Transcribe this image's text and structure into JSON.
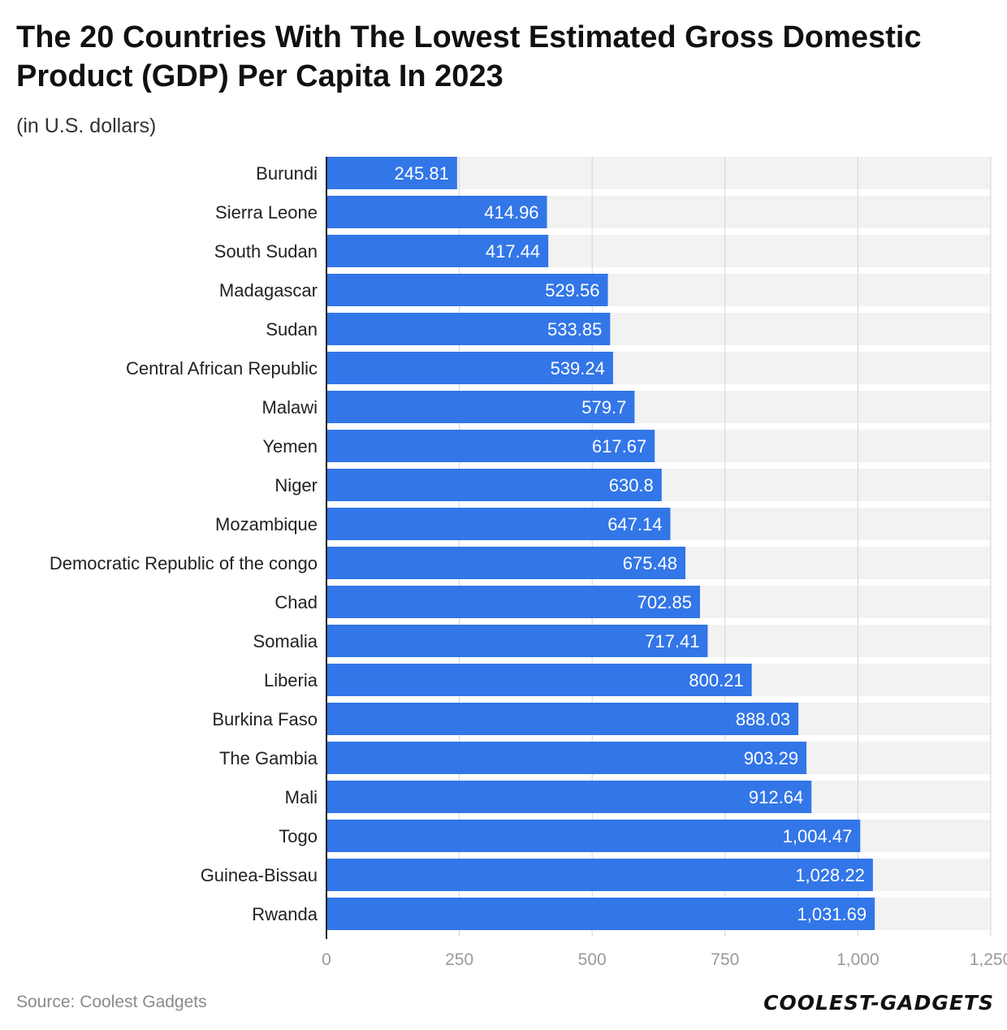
{
  "header": {
    "title": "The 20 Countries With The Lowest Estimated Gross Domestic Product (GDP) Per Capita In 2023",
    "subtitle": "(in U.S. dollars)"
  },
  "footer": {
    "source": "Source: Coolest Gadgets",
    "logo_text": "COOLEST-GADGETS"
  },
  "colors": {
    "bar": "#3276e8",
    "band": "#f2f2f2",
    "grid": "#d4d4d4",
    "axis": "#222222"
  },
  "chart_data": {
    "type": "bar",
    "orientation": "horizontal",
    "title": "The 20 Countries With The Lowest Estimated Gross Domestic Product (GDP) Per Capita In 2023",
    "subtitle": "(in U.S. dollars)",
    "categories": [
      "Burundi",
      "Sierra Leone",
      "South Sudan",
      "Madagascar",
      "Sudan",
      "Central African Republic",
      "Malawi",
      "Yemen",
      "Niger",
      "Mozambique",
      "Democratic Republic of the congo",
      "Chad",
      "Somalia",
      "Liberia",
      "Burkina Faso",
      "The Gambia",
      "Mali",
      "Togo",
      "Guinea-Bissau",
      "Rwanda"
    ],
    "values": [
      245.81,
      414.96,
      417.44,
      529.56,
      533.85,
      539.24,
      579.7,
      617.67,
      630.8,
      647.14,
      675.48,
      702.85,
      717.41,
      800.21,
      888.03,
      903.29,
      912.64,
      1004.47,
      1028.22,
      1031.69
    ],
    "value_labels": [
      "245.81",
      "414.96",
      "417.44",
      "529.56",
      "533.85",
      "539.24",
      "579.7",
      "617.67",
      "630.8",
      "647.14",
      "675.48",
      "702.85",
      "717.41",
      "800.21",
      "888.03",
      "903.29",
      "912.64",
      "1,004.47",
      "1,028.22",
      "1,031.69"
    ],
    "xticks": [
      0,
      250,
      500,
      750,
      1000,
      1250
    ],
    "xtick_labels": [
      "0",
      "250",
      "500",
      "750",
      "1,000",
      "1,250"
    ],
    "xlim": [
      0,
      1250
    ],
    "grid": true,
    "legend": "none"
  }
}
